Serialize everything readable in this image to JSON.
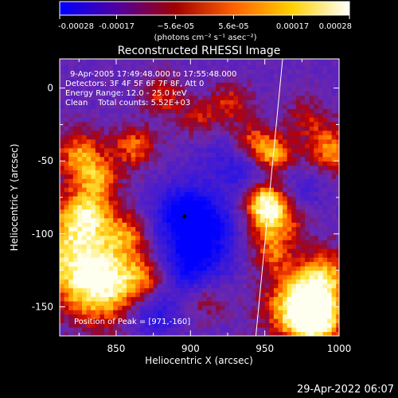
{
  "chart_data": {
    "type": "heatmap",
    "title": "Reconstructed RHESSI Image",
    "xlabel": "Heliocentric X (arcsec)",
    "ylabel": "Heliocentric Y (arcsec)",
    "xlim": [
      812,
      1000
    ],
    "ylim": [
      -170,
      20
    ],
    "x_ticks": [
      850,
      900,
      950,
      1000
    ],
    "y_ticks": [
      0,
      -50,
      -100,
      -150
    ],
    "colorbar": {
      "min": -0.00028,
      "max": 0.00028,
      "tick_values": [
        -0.00028,
        -0.00017,
        -5.6e-05,
        5.6e-05,
        0.00017,
        0.00028
      ],
      "tick_labels": [
        "-0.00028",
        "-0.00017",
        "−5.6e-05",
        "5.6e-05",
        "0.00017",
        "0.00028"
      ],
      "units_label": "(photons cm⁻² s⁻¹ asec⁻²)",
      "colors": [
        "#0000ff",
        "#5000a0",
        "#a00000",
        "#ff6000",
        "#ffd000",
        "#ffffff"
      ]
    },
    "annotations": [
      "9-Apr-2005 17:49:48.000 to 17:55:48.000",
      "Detectors: 3F 4F 5F 6F 7F 8F, Att 0",
      "Energy Range: 12.0 - 25.0 keV",
      "Clean    Total counts: 5.52E+03"
    ],
    "peak_label": "Position of Peak = [971,-160]",
    "peak_position": [
      971,
      -160
    ],
    "limb_line": [
      [
        944,
        -170
      ],
      [
        962,
        20
      ]
    ],
    "dark_spot": [
      896,
      -88
    ],
    "blobs": [
      {
        "x": 822,
        "y": -110,
        "v": 1.2,
        "r": 22
      },
      {
        "x": 840,
        "y": -137,
        "v": 1.3,
        "r": 18
      },
      {
        "x": 830,
        "y": -85,
        "v": 0.9,
        "r": 12
      },
      {
        "x": 825,
        "y": -45,
        "v": 1.0,
        "r": 12
      },
      {
        "x": 838,
        "y": -62,
        "v": 0.8,
        "r": 10
      },
      {
        "x": 862,
        "y": -40,
        "v": 0.9,
        "r": 10
      },
      {
        "x": 870,
        "y": -130,
        "v": 0.8,
        "r": 12
      },
      {
        "x": 858,
        "y": -100,
        "v": 0.7,
        "r": 10
      },
      {
        "x": 882,
        "y": -5,
        "v": 0.7,
        "r": 10
      },
      {
        "x": 905,
        "y": -20,
        "v": 0.6,
        "r": 9
      },
      {
        "x": 928,
        "y": -10,
        "v": 0.7,
        "r": 10
      },
      {
        "x": 940,
        "y": -35,
        "v": 0.6,
        "r": 9
      },
      {
        "x": 955,
        "y": -45,
        "v": 1.2,
        "r": 10
      },
      {
        "x": 955,
        "y": -88,
        "v": 1.4,
        "r": 14
      },
      {
        "x": 948,
        "y": -75,
        "v": 0.9,
        "r": 9
      },
      {
        "x": 955,
        "y": -115,
        "v": 0.6,
        "r": 9
      },
      {
        "x": 972,
        "y": -150,
        "v": 1.4,
        "r": 16
      },
      {
        "x": 990,
        "y": -130,
        "v": 1.1,
        "r": 14
      },
      {
        "x": 985,
        "y": -160,
        "v": 1.3,
        "r": 12
      },
      {
        "x": 995,
        "y": -42,
        "v": 1.0,
        "r": 12
      },
      {
        "x": 978,
        "y": -20,
        "v": 0.5,
        "r": 10
      },
      {
        "x": 910,
        "y": -145,
        "v": 0.6,
        "r": 10
      },
      {
        "x": 900,
        "y": -120,
        "v": -1.2,
        "r": 16
      },
      {
        "x": 895,
        "y": -85,
        "v": -1.3,
        "r": 14
      },
      {
        "x": 918,
        "y": -95,
        "v": -0.8,
        "r": 14
      },
      {
        "x": 875,
        "y": -155,
        "v": -0.8,
        "r": 12
      },
      {
        "x": 940,
        "y": -60,
        "v": -0.6,
        "r": 12
      },
      {
        "x": 975,
        "y": -70,
        "v": -0.5,
        "r": 12
      },
      {
        "x": 920,
        "y": -50,
        "v": -0.4,
        "r": 12
      }
    ]
  },
  "footer": {
    "timestamp": "29-Apr-2022 06:07"
  }
}
